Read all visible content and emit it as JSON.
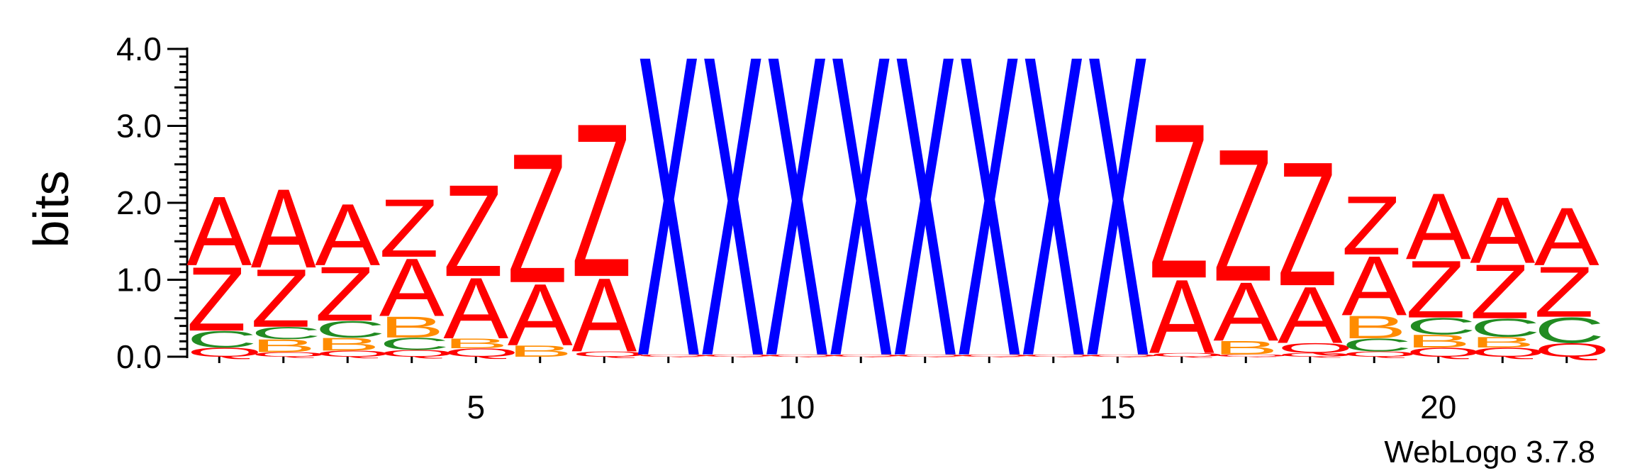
{
  "chart_data": {
    "type": "sequence-logo",
    "ylabel": "bits",
    "ylim": [
      0,
      4.0
    ],
    "yticks": [
      "0.0",
      "1.0",
      "2.0",
      "3.0",
      "4.0"
    ],
    "xticks": [
      5,
      10,
      15,
      20
    ],
    "positions": 22,
    "colors": {
      "A": "#ff0000",
      "Z": "#ff0000",
      "Q": "#ff0000",
      "X": "#0000ff",
      "B": "#ff8c00",
      "C": "#228b22"
    },
    "columns": [
      {
        "position": 1,
        "stack": [
          {
            "letter": "Q",
            "bits": 0.12
          },
          {
            "letter": "C",
            "bits": 0.22
          },
          {
            "letter": "Z",
            "bits": 0.85
          },
          {
            "letter": "A",
            "bits": 0.92
          }
        ]
      },
      {
        "position": 2,
        "stack": [
          {
            "letter": "Q",
            "bits": 0.06
          },
          {
            "letter": "B",
            "bits": 0.17
          },
          {
            "letter": "C",
            "bits": 0.16
          },
          {
            "letter": "Z",
            "bits": 0.77
          },
          {
            "letter": "A",
            "bits": 1.05
          }
        ]
      },
      {
        "position": 3,
        "stack": [
          {
            "letter": "Q",
            "bits": 0.08
          },
          {
            "letter": "B",
            "bits": 0.17
          },
          {
            "letter": "C",
            "bits": 0.22
          },
          {
            "letter": "Z",
            "bits": 0.72
          },
          {
            "letter": "A",
            "bits": 0.82
          }
        ]
      },
      {
        "position": 4,
        "stack": [
          {
            "letter": "Q",
            "bits": 0.09
          },
          {
            "letter": "C",
            "bits": 0.16
          },
          {
            "letter": "B",
            "bits": 0.28
          },
          {
            "letter": "A",
            "bits": 0.77
          },
          {
            "letter": "Z",
            "bits": 0.77
          }
        ]
      },
      {
        "position": 5,
        "stack": [
          {
            "letter": "Q",
            "bits": 0.11
          },
          {
            "letter": "B",
            "bits": 0.13
          },
          {
            "letter": "A",
            "bits": 0.81
          },
          {
            "letter": "Z",
            "bits": 1.22
          }
        ]
      },
      {
        "position": 6,
        "stack": [
          {
            "letter": "B",
            "bits": 0.15
          },
          {
            "letter": "A",
            "bits": 0.82
          },
          {
            "letter": "Z",
            "bits": 1.72
          }
        ]
      },
      {
        "position": 7,
        "stack": [
          {
            "letter": "Q",
            "bits": 0.07
          },
          {
            "letter": "A",
            "bits": 0.98
          },
          {
            "letter": "Z",
            "bits": 2.04
          }
        ]
      },
      {
        "position": 8,
        "stack": [
          {
            "letter": "Q",
            "bits": 0.03
          },
          {
            "letter": "X",
            "bits": 4.0
          }
        ]
      },
      {
        "position": 9,
        "stack": [
          {
            "letter": "Q",
            "bits": 0.03
          },
          {
            "letter": "X",
            "bits": 4.0
          }
        ]
      },
      {
        "position": 10,
        "stack": [
          {
            "letter": "Q",
            "bits": 0.03
          },
          {
            "letter": "X",
            "bits": 4.0
          }
        ]
      },
      {
        "position": 11,
        "stack": [
          {
            "letter": "Q",
            "bits": 0.03
          },
          {
            "letter": "X",
            "bits": 4.0
          }
        ]
      },
      {
        "position": 12,
        "stack": [
          {
            "letter": "Q",
            "bits": 0.03
          },
          {
            "letter": "X",
            "bits": 4.0
          }
        ]
      },
      {
        "position": 13,
        "stack": [
          {
            "letter": "Q",
            "bits": 0.03
          },
          {
            "letter": "X",
            "bits": 4.0
          }
        ]
      },
      {
        "position": 14,
        "stack": [
          {
            "letter": "Q",
            "bits": 0.03
          },
          {
            "letter": "X",
            "bits": 4.0
          }
        ]
      },
      {
        "position": 15,
        "stack": [
          {
            "letter": "Q",
            "bits": 0.03
          },
          {
            "letter": "X",
            "bits": 4.0
          }
        ]
      },
      {
        "position": 16,
        "stack": [
          {
            "letter": "Q",
            "bits": 0.05
          },
          {
            "letter": "A",
            "bits": 0.98
          },
          {
            "letter": "Z",
            "bits": 2.06
          }
        ]
      },
      {
        "position": 17,
        "stack": [
          {
            "letter": "Q",
            "bits": 0.03
          },
          {
            "letter": "B",
            "bits": 0.18
          },
          {
            "letter": "A",
            "bits": 0.78
          },
          {
            "letter": "Z",
            "bits": 1.76
          }
        ]
      },
      {
        "position": 18,
        "stack": [
          {
            "letter": "Q",
            "bits": 0.05
          },
          {
            "letter": "Q",
            "bits": 0.13
          },
          {
            "letter": "A",
            "bits": 0.75
          },
          {
            "letter": "Z",
            "bits": 1.65
          }
        ]
      },
      {
        "position": 19,
        "stack": [
          {
            "letter": "Q",
            "bits": 0.07
          },
          {
            "letter": "C",
            "bits": 0.17
          },
          {
            "letter": "B",
            "bits": 0.3
          },
          {
            "letter": "A",
            "bits": 0.79
          },
          {
            "letter": "Z",
            "bits": 0.78
          }
        ]
      },
      {
        "position": 20,
        "stack": [
          {
            "letter": "Q",
            "bits": 0.12
          },
          {
            "letter": "B",
            "bits": 0.17
          },
          {
            "letter": "C",
            "bits": 0.22
          },
          {
            "letter": "Z",
            "bits": 0.76
          },
          {
            "letter": "A",
            "bits": 0.88
          }
        ]
      },
      {
        "position": 21,
        "stack": [
          {
            "letter": "Q",
            "bits": 0.12
          },
          {
            "letter": "B",
            "bits": 0.14
          },
          {
            "letter": "C",
            "bits": 0.24
          },
          {
            "letter": "Z",
            "bits": 0.72
          },
          {
            "letter": "A",
            "bits": 0.88
          }
        ]
      },
      {
        "position": 22,
        "stack": [
          {
            "letter": "Q",
            "bits": 0.18
          },
          {
            "letter": "C",
            "bits": 0.34
          },
          {
            "letter": "Z",
            "bits": 0.67
          },
          {
            "letter": "A",
            "bits": 0.77
          }
        ]
      }
    ]
  },
  "footer": {
    "credit": "WebLogo 3.7.8"
  }
}
